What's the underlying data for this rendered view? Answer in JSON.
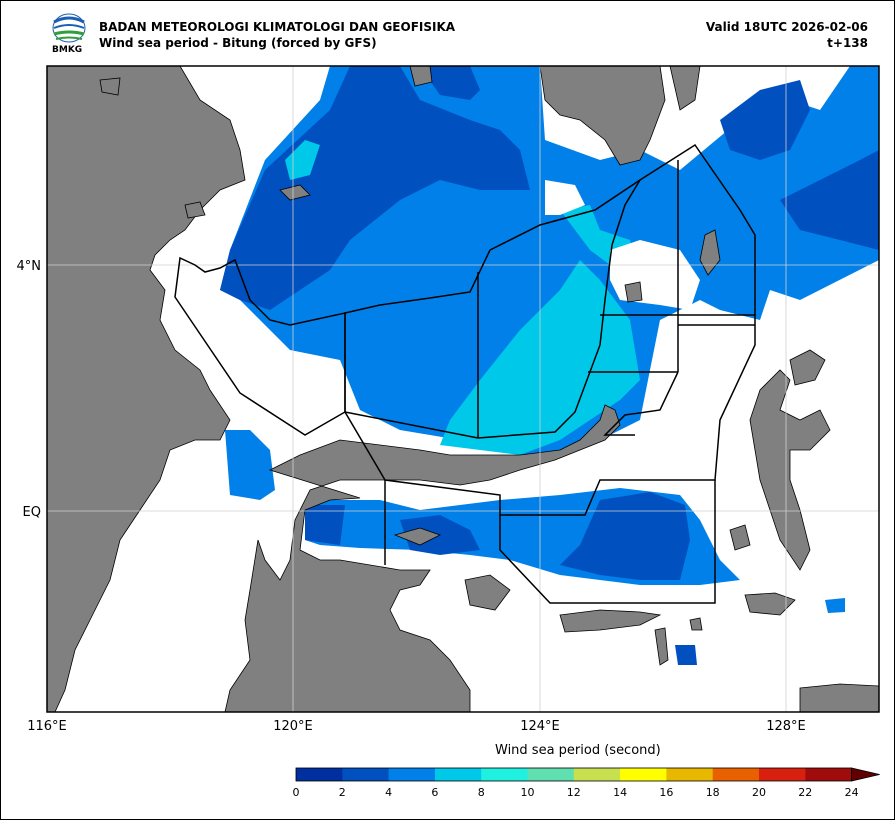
{
  "header": {
    "agency": "BADAN METEOROLOGI KLIMATOLOGI DAN GEOFISIKA",
    "subtitle": "Wind sea period - Bitung (forced by GFS)",
    "valid": "Valid 18UTC 2026-02-06",
    "lead": "t+138",
    "logo_text": "BMKG"
  },
  "map": {
    "lon_labels": [
      "116°E",
      "120°E",
      "124°E",
      "128°E"
    ],
    "lat_labels": [
      "4°N",
      "EQ"
    ],
    "land_color": "#808080",
    "grid_color": "#d0d0d0"
  },
  "colorbar": {
    "title": "Wind sea period (second)",
    "levels": [
      "0",
      "2",
      "4",
      "6",
      "8",
      "10",
      "12",
      "14",
      "16",
      "18",
      "20",
      "22",
      "24"
    ],
    "colors": [
      "#0030a0",
      "#0050c0",
      "#0080e8",
      "#00c8e8",
      "#20f0e0",
      "#60e0b0",
      "#c8e050",
      "#ffff00",
      "#e8b800",
      "#e86000",
      "#d82010",
      "#a00c0c",
      "#600000"
    ],
    "extend": "max"
  }
}
